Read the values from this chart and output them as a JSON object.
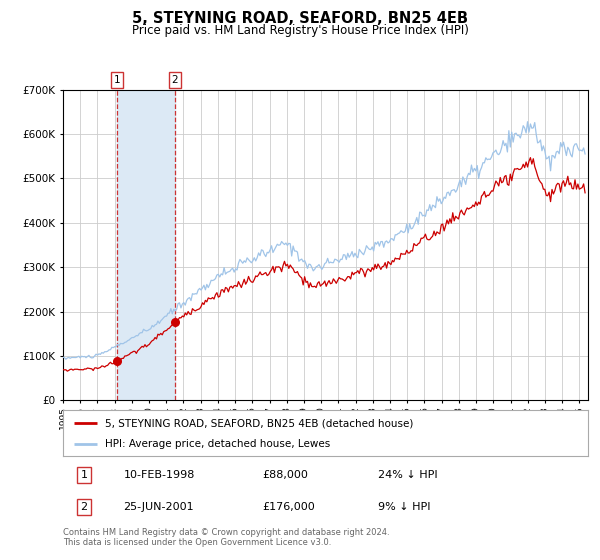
{
  "title": "5, STEYNING ROAD, SEAFORD, BN25 4EB",
  "subtitle": "Price paid vs. HM Land Registry's House Price Index (HPI)",
  "background_color": "#ffffff",
  "plot_bg_color": "#ffffff",
  "grid_color": "#cccccc",
  "hpi_color": "#a0c4e8",
  "price_color": "#cc0000",
  "sale1_date_num": 1998.12,
  "sale1_price": 88000,
  "sale1_label": "1",
  "sale2_date_num": 2001.49,
  "sale2_price": 176000,
  "sale2_label": "2",
  "shade_color": "#dce9f5",
  "dashed_color": "#cc3333",
  "legend_label_red": "5, STEYNING ROAD, SEAFORD, BN25 4EB (detached house)",
  "legend_label_blue": "HPI: Average price, detached house, Lewes",
  "table_row1": [
    "1",
    "10-FEB-1998",
    "£88,000",
    "24% ↓ HPI"
  ],
  "table_row2": [
    "2",
    "25-JUN-2001",
    "£176,000",
    "9% ↓ HPI"
  ],
  "footnote": "Contains HM Land Registry data © Crown copyright and database right 2024.\nThis data is licensed under the Open Government Licence v3.0.",
  "ylim": [
    0,
    700000
  ],
  "xlim_start": 1995.0,
  "xlim_end": 2025.5
}
